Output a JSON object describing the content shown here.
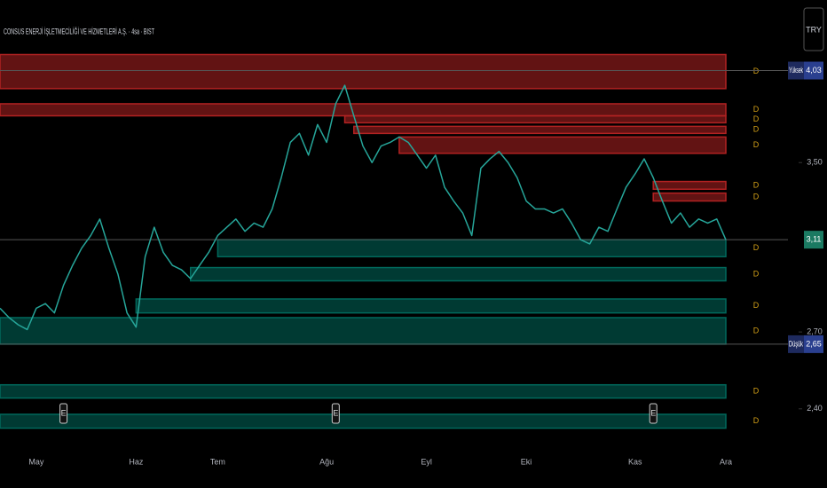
{
  "chart_data": {
    "type": "line",
    "title": "CONSUS ENERJİ İŞLETMECİLİĞİ VE HİZMETLERİ A.Ş. · 4sa · BIST",
    "currency": "TRY",
    "categories": [
      null,
      null,
      null,
      null,
      "May",
      null,
      null,
      null,
      null,
      null,
      null,
      null,
      null,
      null,
      null,
      "Haz",
      null,
      null,
      null,
      null,
      null,
      null,
      null,
      null,
      "Tem",
      null,
      null,
      null,
      null,
      null,
      null,
      null,
      null,
      null,
      null,
      null,
      "Ağu",
      null,
      null,
      null,
      null,
      null,
      null,
      null,
      null,
      null,
      null,
      "Eyl",
      null,
      null,
      null,
      null,
      null,
      null,
      null,
      null,
      null,
      null,
      "Eki",
      null,
      null,
      null,
      null,
      null,
      null,
      null,
      null,
      null,
      null,
      null,
      "Kas",
      null,
      null,
      null,
      null,
      null,
      null,
      null,
      null,
      null,
      "Ara"
    ],
    "values": [
      2.8,
      2.76,
      2.73,
      2.71,
      2.8,
      2.82,
      2.78,
      2.9,
      2.99,
      3.07,
      3.13,
      3.21,
      3.07,
      2.95,
      2.78,
      2.72,
      3.03,
      3.17,
      3.05,
      2.99,
      2.97,
      2.93,
      2.99,
      3.05,
      3.13,
      3.17,
      3.21,
      3.15,
      3.19,
      3.17,
      3.26,
      3.42,
      3.61,
      3.66,
      3.54,
      3.71,
      3.61,
      3.83,
      3.94,
      3.76,
      3.59,
      3.5,
      3.59,
      3.61,
      3.64,
      3.61,
      3.54,
      3.47,
      3.54,
      3.37,
      3.3,
      3.24,
      3.13,
      3.47,
      3.52,
      3.56,
      3.5,
      3.42,
      3.3,
      3.26,
      3.26,
      3.24,
      3.26,
      3.19,
      3.11,
      3.09,
      3.17,
      3.15,
      3.26,
      3.37,
      3.44,
      3.52,
      3.42,
      3.3,
      3.19,
      3.24,
      3.17,
      3.21,
      3.19,
      3.21,
      3.11
    ],
    "color": "#26a69a",
    "log_scale": true,
    "ylim": [
      2.26,
      4.49
    ],
    "yticks": [
      {
        "value": 2.4,
        "label": "2,40"
      },
      {
        "value": 2.7,
        "label": "2,70"
      },
      {
        "value": 3.5,
        "label": "3,50"
      }
    ],
    "price_labels": [
      {
        "name": "Yüksek",
        "value": 4.03,
        "label": "4,03",
        "color": "#2a3f8f"
      },
      {
        "value": 3.11,
        "label": "3,11",
        "color": "#1b7a62"
      },
      {
        "name": "Düşük",
        "value": 2.65,
        "label": "2,65",
        "color": "#2a3f8f"
      }
    ],
    "zones": [
      {
        "high": 4.13,
        "low": 3.92,
        "start": 0,
        "tag": "D",
        "color": "#b22222"
      },
      {
        "high": 3.83,
        "low": 3.76,
        "start": 0,
        "tag": "D",
        "color": "#b22222"
      },
      {
        "high": 3.76,
        "low": 3.72,
        "start": 38,
        "tag": "D",
        "color": "#b22222"
      },
      {
        "high": 3.7,
        "low": 3.66,
        "start": 39,
        "tag": "D",
        "color": "#b22222"
      },
      {
        "high": 3.64,
        "low": 3.55,
        "start": 44,
        "tag": "D",
        "color": "#b22222"
      },
      {
        "high": 3.4,
        "low": 3.36,
        "start": 72,
        "tag": "D",
        "color": "#b22222"
      },
      {
        "high": 3.34,
        "low": 3.3,
        "start": 72,
        "tag": "D",
        "color": "#b22222"
      },
      {
        "high": 3.11,
        "low": 3.03,
        "start": 24,
        "tag": "D",
        "color": "#00695c"
      },
      {
        "high": 2.98,
        "low": 2.92,
        "start": 21,
        "tag": "D",
        "color": "#00695c"
      },
      {
        "high": 2.84,
        "low": 2.78,
        "start": 15,
        "tag": "D",
        "color": "#00695c"
      },
      {
        "high": 2.76,
        "low": 2.65,
        "start": 0,
        "tag": "D",
        "color": "#00695c"
      },
      {
        "high": 2.49,
        "low": 2.44,
        "start": 0,
        "tag": "D",
        "color": "#00695c"
      },
      {
        "high": 2.38,
        "low": 2.33,
        "start": 0,
        "tag": "D",
        "color": "#00695c"
      }
    ],
    "events": [
      {
        "label": "E",
        "category": 7
      },
      {
        "label": "E",
        "category": 37
      },
      {
        "label": "E",
        "category": 72
      }
    ]
  }
}
